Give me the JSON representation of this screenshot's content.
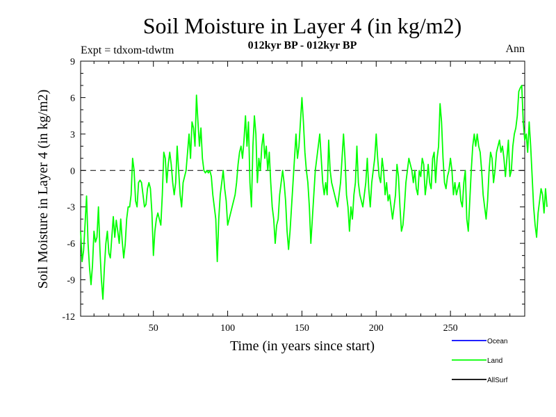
{
  "chart_data": {
    "type": "line",
    "title": "Soil Moisture in Layer 4 (in kg/m2)",
    "subtitle": "012kyr BP - 012kyr BP",
    "experiment": "Expt = tdxom-tdwtm",
    "period": "Ann",
    "xlabel": "Time (in years since start)",
    "ylabel": "Soil Moisture in Layer 4 (in kg/m2)",
    "xlim": [
      1,
      300
    ],
    "ylim": [
      -12,
      9
    ],
    "xticks": [
      50,
      100,
      150,
      200,
      250
    ],
    "yticks": [
      -12,
      -9,
      -6,
      -3,
      0,
      3,
      6,
      9
    ],
    "reference_line": 0,
    "legend": [
      {
        "name": "Ocean",
        "color": "#0000ff"
      },
      {
        "name": "Land",
        "color": "#00ff00"
      },
      {
        "name": "AllSurf",
        "color": "#000000"
      }
    ],
    "series": [
      {
        "name": "Land",
        "color": "#00ff00",
        "x_start": 1,
        "x_step": 1,
        "values": [
          -5.0,
          -7.5,
          -6.6,
          -4.4,
          -2.1,
          -6.0,
          -8.0,
          -9.4,
          -7.8,
          -5.0,
          -5.9,
          -5.5,
          -3.0,
          -6.5,
          -9.0,
          -10.6,
          -8.0,
          -6.0,
          -5.0,
          -6.8,
          -7.2,
          -5.5,
          -3.8,
          -5.5,
          -4.1,
          -5.0,
          -6.0,
          -4.0,
          -5.8,
          -7.2,
          -6.1,
          -4.0,
          -3.0,
          -3.0,
          -2.0,
          1.0,
          0.0,
          -2.5,
          -3.0,
          -1.0,
          -0.8,
          -1.0,
          -2.0,
          -3.0,
          -2.8,
          -1.5,
          -1.0,
          -1.5,
          -3.5,
          -7.0,
          -5.0,
          -4.0,
          -3.5,
          -4.0,
          -4.5,
          -2.0,
          1.5,
          1.0,
          -1.0,
          0.5,
          1.5,
          0.5,
          -1.0,
          -2.0,
          -1.0,
          2.0,
          0.0,
          -2.0,
          -3.0,
          -1.0,
          -0.5,
          0.0,
          1.5,
          3.0,
          1.0,
          4.0,
          3.5,
          2.0,
          6.2,
          4.0,
          2.0,
          3.5,
          1.0,
          0.0,
          -0.2,
          0.0,
          -0.2,
          0.0,
          -0.5,
          -2.0,
          -3.0,
          -4.0,
          -7.5,
          -4.0,
          -2.0,
          -1.0,
          0.0,
          -1.5,
          -2.5,
          -4.5,
          -4.0,
          -3.5,
          -3.0,
          -2.5,
          -2.0,
          -1.0,
          0.5,
          1.5,
          2.0,
          1.0,
          2.5,
          4.5,
          2.0,
          4.0,
          -1.0,
          -3.0,
          2.0,
          4.5,
          3.0,
          -1.0,
          1.0,
          0.0,
          2.0,
          3.0,
          1.0,
          2.0,
          0.0,
          1.5,
          -1.0,
          -3.0,
          -4.0,
          -6.0,
          -4.5,
          -4.0,
          -2.0,
          -1.0,
          0.0,
          -1.0,
          -2.5,
          -5.0,
          -6.5,
          -5.0,
          -3.0,
          -1.0,
          1.0,
          3.0,
          1.0,
          2.0,
          4.0,
          6.0,
          4.0,
          1.5,
          0.0,
          -1.0,
          -3.0,
          -6.0,
          -4.0,
          -2.0,
          0.0,
          1.0,
          2.0,
          3.0,
          1.0,
          -1.0,
          -2.0,
          -1.0,
          -2.0,
          2.5,
          0.0,
          -1.0,
          -1.5,
          -2.0,
          -2.5,
          -3.0,
          -2.0,
          -1.0,
          1.0,
          3.0,
          1.0,
          -2.0,
          -3.0,
          -5.0,
          -3.0,
          -4.0,
          -2.0,
          -1.0,
          2.0,
          -1.0,
          -2.0,
          -2.5,
          -3.0,
          -2.0,
          -1.0,
          1.0,
          -1.5,
          -3.0,
          -1.0,
          0.0,
          1.0,
          3.0,
          1.0,
          -0.5,
          -1.0,
          1.0,
          0.0,
          -2.0,
          -1.0,
          -2.5,
          -2.0,
          -3.0,
          -4.0,
          -3.0,
          -2.0,
          0.5,
          -0.5,
          -3.0,
          -5.0,
          -4.5,
          -3.0,
          -1.0,
          0.0,
          1.0,
          0.5,
          0.0,
          -1.0,
          0.0,
          -1.5,
          -2.0,
          0.0,
          -0.5,
          1.0,
          0.5,
          -2.0,
          -1.0,
          0.5,
          -1.0,
          -1.5,
          1.0,
          1.5,
          -1.0,
          1.0,
          2.0,
          5.5,
          4.0,
          1.0,
          -1.0,
          -1.5,
          -0.5,
          0.0,
          1.0,
          0.0,
          -2.0,
          -1.0,
          -2.0,
          -1.5,
          -1.0,
          -2.5,
          -3.0,
          -1.0,
          0.0,
          -4.0,
          -5.0,
          -2.5,
          0.0,
          2.0,
          3.0,
          2.0,
          3.0,
          2.0,
          1.5,
          0.0,
          -2.0,
          -3.0,
          -4.0,
          -2.5,
          0.0,
          1.5,
          1.0,
          -1.0,
          0.0,
          1.5,
          2.0,
          2.5,
          1.5,
          2.0,
          1.0,
          -0.5,
          1.0,
          2.5,
          -0.5,
          0.0,
          2.0,
          3.0,
          3.5,
          4.5,
          6.5,
          6.8,
          7.0,
          4.0,
          2.5,
          3.0,
          1.5,
          4.0,
          2.0,
          -0.5,
          -3.0,
          -4.5,
          -5.5,
          -3.5,
          -2.5,
          -1.5,
          -2.0,
          -3.5,
          -1.5,
          -3.0
        ]
      },
      {
        "name": "Ocean",
        "color": "#0000ff",
        "values": []
      },
      {
        "name": "AllSurf",
        "color": "#000000",
        "values": []
      }
    ]
  }
}
